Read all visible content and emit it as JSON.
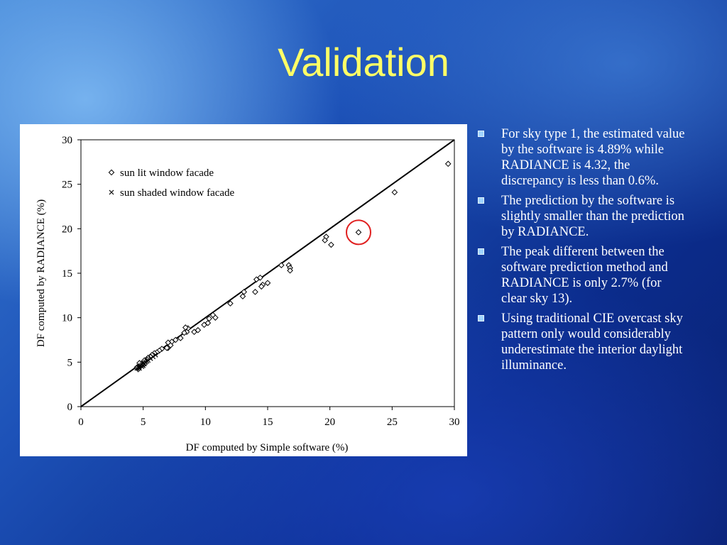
{
  "slide": {
    "title": "Validation"
  },
  "bullets": [
    "For sky type 1, the estimated value by the software is 4.89% while RADIANCE is 4.32, the discrepancy is less than 0.6%.",
    "The prediction by the software is slightly smaller than the prediction by RADIANCE.",
    "The peak different between the software prediction method and  RADIANCE is only 2.7% (for clear sky 13).",
    "Using traditional CIE overcast sky pattern only would considerably underestimate the interior daylight illuminance."
  ],
  "colors": {
    "title": "#ffff66",
    "highlight_circle": "#e02020"
  },
  "chart_data": {
    "type": "scatter",
    "title": "",
    "xlabel": "DF computed by Simple software (%)",
    "ylabel": "DF computed by RADIANCE (%)",
    "xlim": [
      0,
      30
    ],
    "ylim": [
      0,
      30
    ],
    "xticks": [
      0,
      5,
      10,
      15,
      20,
      25,
      30
    ],
    "yticks": [
      0,
      5,
      10,
      15,
      20,
      25,
      30
    ],
    "grid": false,
    "legend_position": "top-left",
    "reference_line": {
      "label": "",
      "from": [
        0,
        0
      ],
      "to": [
        30,
        30
      ]
    },
    "highlight": {
      "x": 22.3,
      "y": 19.6
    },
    "series": [
      {
        "name": "sun lit window facade",
        "marker": "diamond",
        "points": [
          [
            29.5,
            27.3
          ],
          [
            25.2,
            24.1
          ],
          [
            22.3,
            19.6
          ],
          [
            20.1,
            18.2
          ],
          [
            19.7,
            19.1
          ],
          [
            19.6,
            18.7
          ],
          [
            16.1,
            15.9
          ],
          [
            16.7,
            15.9
          ],
          [
            16.8,
            15.6
          ],
          [
            16.8,
            15.3
          ],
          [
            14.4,
            14.5
          ],
          [
            14.1,
            14.3
          ],
          [
            14.6,
            13.7
          ],
          [
            14.5,
            13.5
          ],
          [
            15.0,
            13.9
          ],
          [
            13.1,
            12.9
          ],
          [
            13.0,
            12.4
          ],
          [
            14.0,
            12.9
          ],
          [
            12.0,
            11.6
          ],
          [
            10.6,
            10.3
          ],
          [
            10.8,
            10.0
          ],
          [
            10.3,
            9.9
          ],
          [
            10.2,
            9.4
          ],
          [
            9.9,
            9.2
          ],
          [
            9.4,
            8.6
          ],
          [
            9.1,
            8.4
          ],
          [
            8.6,
            8.8
          ],
          [
            8.4,
            8.9
          ],
          [
            8.5,
            8.4
          ],
          [
            8.3,
            8.3
          ],
          [
            8.0,
            7.7
          ],
          [
            7.6,
            7.5
          ],
          [
            7.3,
            7.3
          ],
          [
            7.0,
            7.2
          ],
          [
            7.2,
            6.9
          ],
          [
            7.0,
            6.6
          ],
          [
            6.9,
            6.6
          ],
          [
            6.5,
            6.5
          ],
          [
            6.3,
            6.3
          ],
          [
            6.1,
            6.1
          ],
          [
            5.9,
            6.0
          ],
          [
            5.7,
            5.8
          ],
          [
            5.6,
            5.6
          ],
          [
            5.4,
            5.5
          ],
          [
            5.3,
            5.3
          ],
          [
            5.2,
            5.2
          ],
          [
            5.1,
            5.2
          ],
          [
            5.1,
            4.8
          ],
          [
            4.9,
            4.7
          ],
          [
            4.8,
            4.6
          ],
          [
            4.6,
            4.5
          ],
          [
            4.7,
            4.9
          ],
          [
            4.6,
            4.2
          ],
          [
            4.5,
            4.4
          ]
        ]
      },
      {
        "name": "sun shaded window facade",
        "marker": "x",
        "points": [
          [
            4.5,
            4.3
          ],
          [
            4.6,
            4.4
          ],
          [
            4.7,
            4.5
          ],
          [
            4.7,
            4.3
          ],
          [
            4.8,
            4.6
          ],
          [
            4.9,
            4.5
          ],
          [
            4.9,
            4.7
          ],
          [
            5.0,
            4.6
          ],
          [
            5.0,
            4.9
          ],
          [
            5.1,
            4.8
          ],
          [
            5.2,
            5.0
          ],
          [
            5.3,
            5.1
          ],
          [
            5.4,
            5.2
          ],
          [
            5.6,
            5.4
          ],
          [
            5.8,
            5.6
          ],
          [
            6.0,
            5.8
          ]
        ]
      }
    ]
  }
}
